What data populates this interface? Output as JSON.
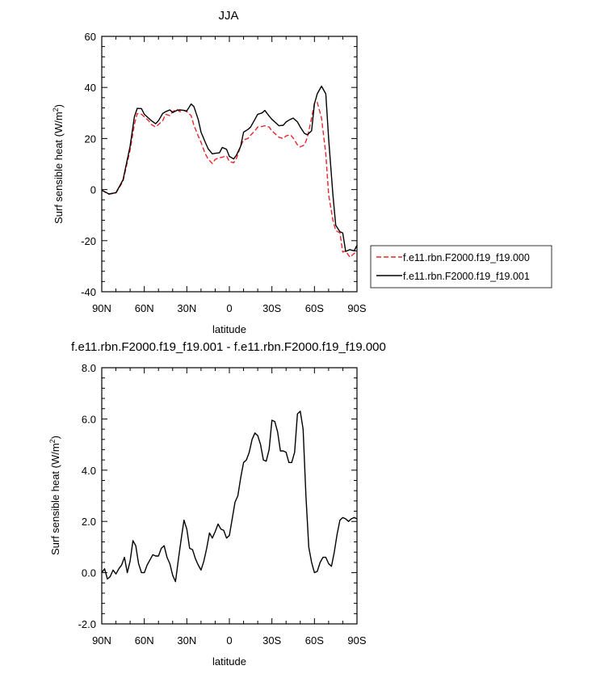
{
  "chart_data": [
    {
      "type": "line",
      "title": "JJA",
      "xlabel": "latitude",
      "ylabel": "Surf sensible heat (W/m",
      "ylabel_sup": "2",
      "ylabel_close": ")",
      "xlim": [
        90,
        -90
      ],
      "ylim": [
        -40,
        60
      ],
      "xticks": [
        90,
        60,
        30,
        0,
        -30,
        -60,
        -90
      ],
      "xtick_labels": [
        "90N",
        "60N",
        "30N",
        "0",
        "30S",
        "60S",
        "90S"
      ],
      "yticks": [
        -40,
        -20,
        0,
        20,
        40,
        60
      ],
      "ytick_labels": [
        "-40",
        "-20",
        "0",
        "20",
        "40",
        "60"
      ],
      "legend_position": "right-bottom-outside",
      "series": [
        {
          "name": "f.e11.rbn.F2000.f19_f19.000",
          "color": "#e8262b",
          "dash": "dashed",
          "x": [
            90,
            85,
            80,
            75,
            70,
            67,
            65,
            62,
            60,
            57,
            55,
            52,
            50,
            47,
            45,
            42,
            40,
            37,
            35,
            32,
            30,
            27,
            25,
            22,
            20,
            17,
            15,
            12,
            10,
            7,
            5,
            2,
            0,
            -3,
            -5,
            -8,
            -10,
            -13,
            -15,
            -18,
            -20,
            -23,
            -25,
            -28,
            -30,
            -33,
            -35,
            -38,
            -40,
            -43,
            -45,
            -48,
            -50,
            -53,
            -55,
            -58,
            -60,
            -62,
            -65,
            -68,
            -70,
            -73,
            -75,
            -78,
            -80,
            -82,
            -85,
            -88,
            -90
          ],
          "y": [
            -0.3,
            -1.8,
            -1.3,
            3.2,
            15.5,
            25.5,
            29.8,
            29.5,
            28.5,
            27,
            25.5,
            24.5,
            25.5,
            27,
            29.5,
            29,
            30.5,
            31.5,
            30.5,
            31,
            30.5,
            29,
            25.2,
            21,
            18.5,
            14,
            12,
            10.2,
            11.8,
            12.5,
            12.7,
            13.2,
            11,
            10.5,
            12.2,
            17,
            19.5,
            20,
            21.3,
            23,
            24.5,
            24.7,
            25,
            24.5,
            23,
            21.5,
            20.5,
            20,
            21,
            21.5,
            20.2,
            17.5,
            16.7,
            17.5,
            20.5,
            28,
            33.8,
            34.2,
            28,
            14,
            -2,
            -12,
            -16,
            -17,
            -24.5,
            -24,
            -26.5,
            -25,
            -24
          ]
        },
        {
          "name": "f.e11.rbn.F2000.f19_f19.001",
          "color": "#000000",
          "dash": "solid",
          "x": [
            90,
            85,
            80,
            75,
            70,
            67,
            65,
            62,
            60,
            57,
            55,
            52,
            50,
            47,
            45,
            42,
            40,
            37,
            35,
            32,
            30,
            27,
            25,
            22,
            20,
            17,
            15,
            12,
            10,
            7,
            5,
            2,
            0,
            -3,
            -5,
            -8,
            -10,
            -13,
            -15,
            -18,
            -20,
            -23,
            -25,
            -28,
            -30,
            -33,
            -35,
            -38,
            -40,
            -43,
            -45,
            -48,
            -50,
            -53,
            -55,
            -58,
            -60,
            -62,
            -65,
            -68,
            -70,
            -73,
            -75,
            -78,
            -80,
            -82,
            -85,
            -88,
            -90
          ],
          "y": [
            -0.2,
            -1.7,
            -1.2,
            3.8,
            17,
            28.5,
            31.8,
            31.7,
            29.5,
            28,
            27,
            25.8,
            27,
            29.8,
            30.5,
            31.2,
            30.2,
            31,
            31.2,
            31,
            30.8,
            33.5,
            32.5,
            27.5,
            22.5,
            18.5,
            16,
            14,
            14.2,
            14.4,
            16.5,
            15.8,
            13,
            12,
            13.5,
            17,
            22.5,
            23.5,
            24.5,
            27.5,
            29.5,
            30,
            31,
            28.8,
            27.5,
            26,
            25,
            25.2,
            26.5,
            27.5,
            28,
            26.5,
            24.5,
            22,
            21.5,
            23,
            33.5,
            37.5,
            40.5,
            37.5,
            20,
            -2,
            -14,
            -16.5,
            -17,
            -24.2,
            -23.5,
            -24,
            -21.8
          ]
        }
      ]
    },
    {
      "type": "line",
      "title": "f.e11.rbn.F2000.f19_f19.001 - f.e11.rbn.F2000.f19_f19.000",
      "xlabel": "latitude",
      "ylabel": "Surf sensible heat (W/m",
      "ylabel_sup": "2",
      "ylabel_close": ")",
      "xlim": [
        90,
        -90
      ],
      "ylim": [
        -2,
        8
      ],
      "xticks": [
        90,
        60,
        30,
        0,
        -30,
        -60,
        -90
      ],
      "xtick_labels": [
        "90N",
        "60N",
        "30N",
        "0",
        "30S",
        "60S",
        "90S"
      ],
      "yticks": [
        -2,
        0,
        2,
        4,
        6,
        8
      ],
      "ytick_labels": [
        "-2.0",
        "0.0",
        "2.0",
        "4.0",
        "6.0",
        "8.0"
      ],
      "series": [
        {
          "color": "#000000",
          "dash": "solid",
          "x": [
            90,
            88,
            86,
            84,
            82,
            80,
            78,
            76,
            74,
            72,
            70,
            68,
            66,
            64,
            62,
            60,
            58,
            56,
            54,
            52,
            50,
            48,
            46,
            44,
            42,
            40,
            38,
            36,
            34,
            32,
            30,
            28,
            26,
            24,
            22,
            20,
            18,
            16,
            14,
            12,
            10,
            8,
            6,
            4,
            2,
            0,
            -2,
            -4,
            -6,
            -8,
            -10,
            -12,
            -14,
            -16,
            -18,
            -20,
            -22,
            -24,
            -26,
            -28,
            -30,
            -32,
            -34,
            -36,
            -38,
            -40,
            -42,
            -44,
            -46,
            -48,
            -50,
            -52,
            -54,
            -56,
            -58,
            -60,
            -62,
            -64,
            -66,
            -68,
            -70,
            -72,
            -74,
            -76,
            -78,
            -80,
            -82,
            -84,
            -86,
            -88,
            -90
          ],
          "y": [
            0.0,
            0.15,
            -0.25,
            -0.15,
            0.1,
            -0.05,
            0.15,
            0.3,
            0.6,
            0.0,
            0.45,
            1.25,
            1.05,
            0.35,
            0.0,
            0.0,
            0.3,
            0.5,
            0.7,
            0.65,
            0.65,
            0.95,
            1.05,
            0.6,
            0.35,
            -0.1,
            -0.35,
            0.5,
            1.3,
            2.05,
            1.7,
            0.95,
            0.9,
            0.55,
            0.3,
            0.1,
            0.45,
            0.95,
            1.55,
            1.35,
            1.6,
            1.9,
            1.7,
            1.65,
            1.35,
            1.45,
            2.1,
            2.75,
            3.0,
            3.7,
            4.3,
            4.4,
            4.7,
            5.2,
            5.45,
            5.35,
            5.0,
            4.4,
            4.35,
            4.8,
            5.95,
            5.9,
            5.5,
            4.75,
            4.75,
            4.7,
            4.3,
            4.3,
            4.7,
            6.2,
            6.3,
            5.6,
            3.0,
            1.0,
            0.4,
            0.0,
            0.05,
            0.4,
            0.6,
            0.6,
            0.35,
            0.25,
            0.8,
            1.5,
            2.05,
            2.15,
            2.1,
            2.0,
            2.1,
            2.15,
            2.1
          ]
        }
      ]
    }
  ]
}
